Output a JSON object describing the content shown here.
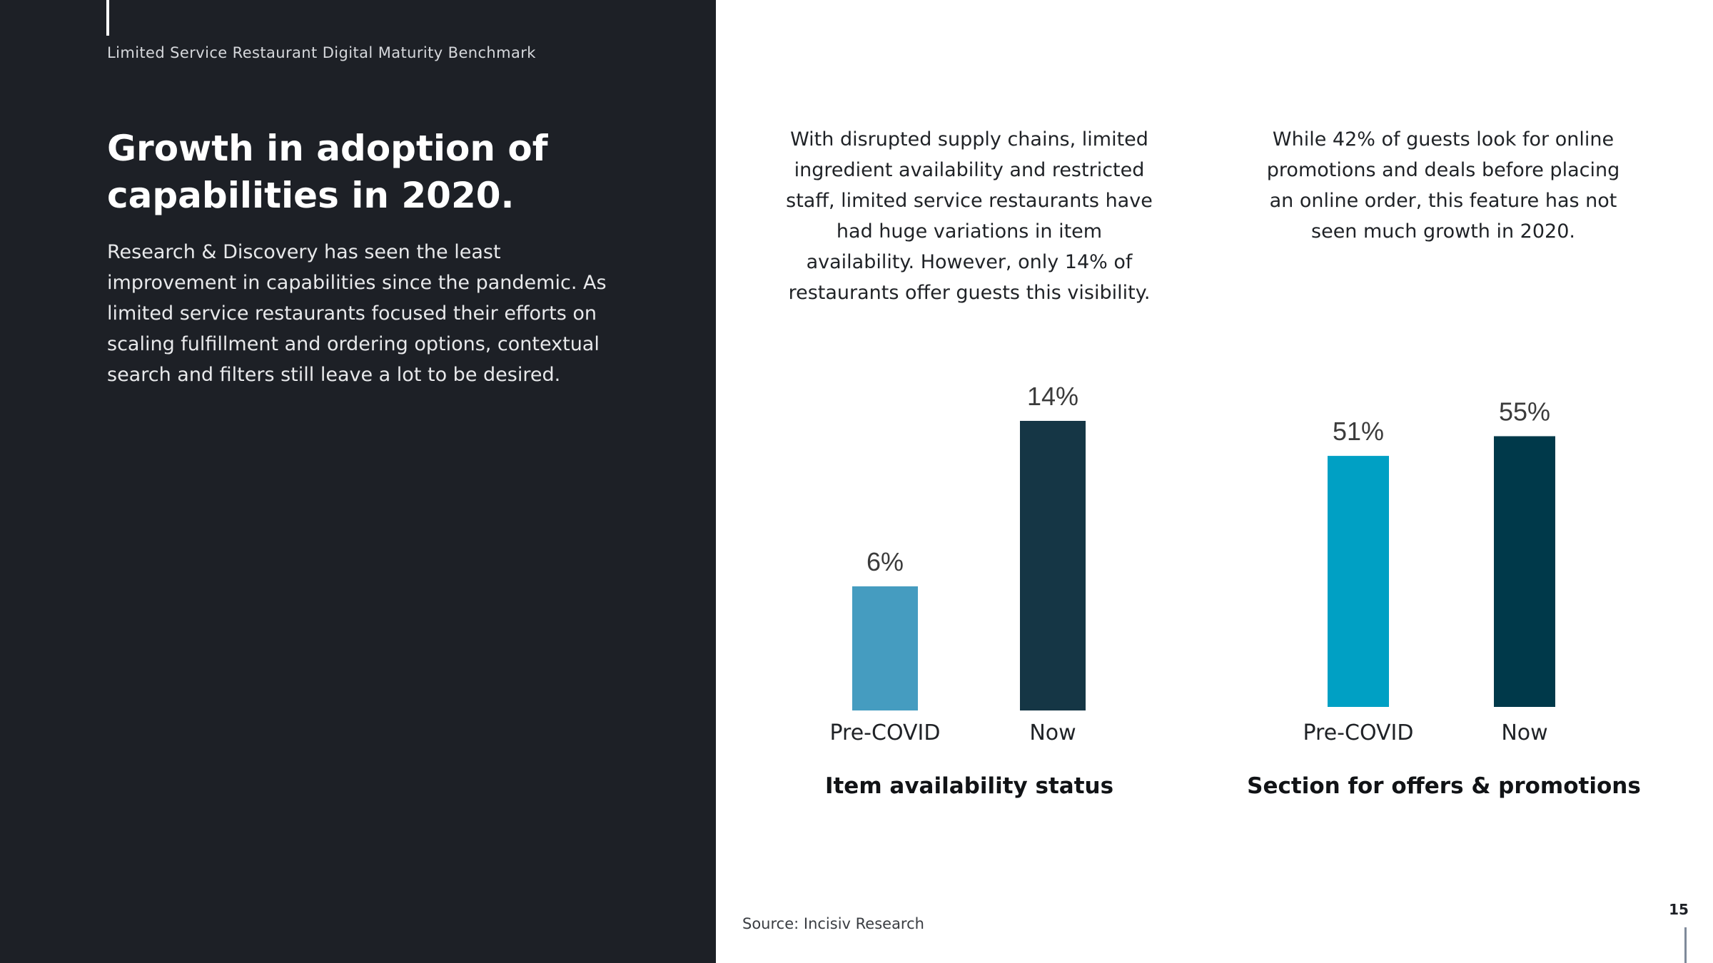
{
  "header": {
    "label": "Limited Service Restaurant Digital Maturity Benchmark"
  },
  "title": "Growth in adoption of capabilities in 2020.",
  "intro": "Research & Discovery has seen the least improvement in capabilities since the pandemic. As limited service restaurants focused their efforts on scaling fulfillment and ordering options, contextual search and filters still leave a lot to be desired.",
  "callouts": [
    "With disrupted supply chains, limited ingredient availability and restricted staff, limited service restaurants have had huge variations in item availability. However, only 14% of restaurants offer guests this visibility.",
    "While 42% of guests look for online promotions and deals before placing an online order, this feature has not seen much growth in 2020."
  ],
  "colors": {
    "panel": "#1d2026",
    "chart1_pre": "#459cc0",
    "chart1_now": "#153645",
    "chart2_pre": "#00a0c4",
    "chart2_now": "#00394a"
  },
  "chart_data": [
    {
      "type": "bar",
      "title": "Item availability status",
      "categories": [
        "Pre-COVID",
        "Now"
      ],
      "values": [
        6,
        14
      ],
      "data_labels": [
        "6%",
        "14%"
      ],
      "unit": "%",
      "grid": false
    },
    {
      "type": "bar",
      "title": "Section for offers & promotions",
      "categories": [
        "Pre-COVID",
        "Now"
      ],
      "values": [
        51,
        55
      ],
      "data_labels": [
        "51%",
        "55%"
      ],
      "unit": "%",
      "grid": false
    }
  ],
  "source": "Source: Incisiv Research",
  "page_number": "15"
}
